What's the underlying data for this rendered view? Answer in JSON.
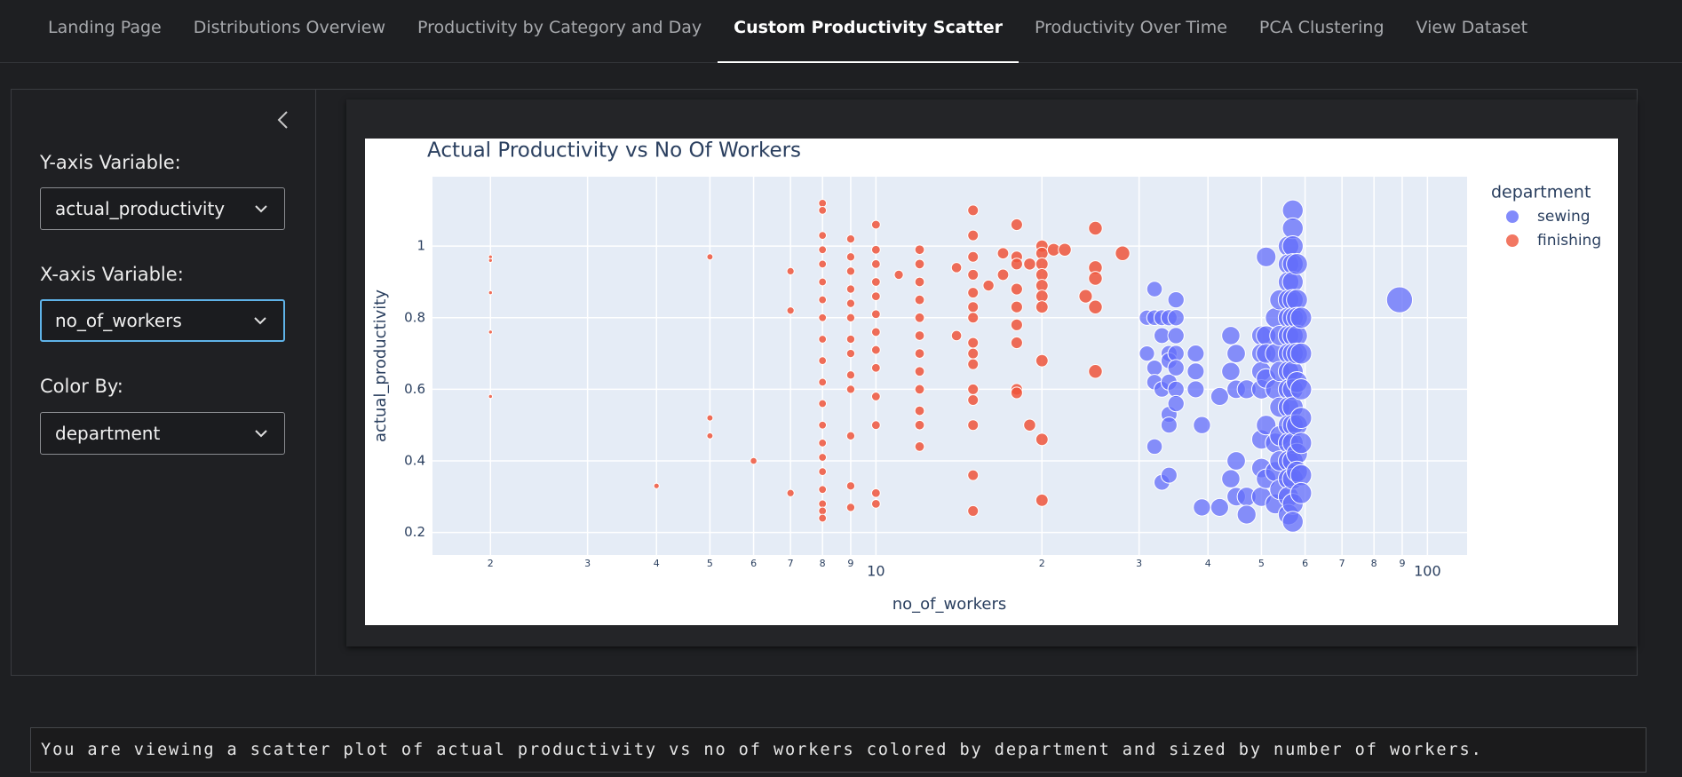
{
  "nav": {
    "tabs": [
      "Landing Page",
      "Distributions Overview",
      "Productivity by Category and Day",
      "Custom Productivity Scatter",
      "Productivity Over Time",
      "PCA Clustering",
      "View Dataset"
    ]
  },
  "sidebar": {
    "y_label": "Y-axis Variable:",
    "y_value": "actual_productivity",
    "x_label": "X-axis Variable:",
    "x_value": "no_of_workers",
    "color_label": "Color By:",
    "color_value": "department"
  },
  "chart_data": {
    "type": "scatter",
    "title": "Actual Productivity vs No Of Workers",
    "x_label": "no_of_workers",
    "y_label": "actual_productivity",
    "legend_title": "department",
    "legend": "right",
    "log_x": true,
    "grid": true,
    "xlim": [
      1.57,
      118
    ],
    "ylim": [
      0.137,
      1.194
    ],
    "xticks": [
      2,
      3,
      4,
      5,
      6,
      7,
      8,
      9,
      10,
      {
        "value": 20,
        "label": "2"
      },
      {
        "value": 30,
        "label": "3"
      },
      {
        "value": 40,
        "label": "4"
      },
      {
        "value": 50,
        "label": "5"
      },
      {
        "value": 60,
        "label": "6"
      },
      {
        "value": 70,
        "label": "7"
      },
      {
        "value": 80,
        "label": "8"
      },
      {
        "value": 90,
        "label": "9"
      },
      100
    ],
    "yticks": [
      0.2,
      0.4,
      0.6,
      0.8,
      1
    ],
    "series": [
      {
        "name": "sewing",
        "color": "#636efa",
        "x": [
          31,
          31,
          32,
          32,
          32,
          32,
          32,
          33,
          33,
          33,
          33,
          34,
          34,
          34,
          34,
          34,
          34,
          34,
          35,
          35,
          35,
          35,
          35,
          35,
          35,
          38,
          38,
          38,
          39,
          39,
          42,
          42,
          44,
          44,
          44,
          45,
          45,
          45,
          45,
          47,
          47,
          47,
          50,
          50,
          50,
          50,
          50,
          50,
          50,
          51,
          51,
          51,
          51,
          51,
          51,
          53,
          53,
          53,
          53,
          53,
          53,
          54,
          54,
          54,
          54,
          54,
          54,
          54,
          56,
          56,
          56,
          56,
          56,
          56,
          56,
          56,
          56,
          56,
          56,
          56,
          56,
          56,
          56,
          56,
          57,
          57,
          57,
          57,
          57,
          57,
          57,
          57,
          57,
          57,
          57,
          57,
          57,
          57,
          57,
          57,
          57,
          57,
          58,
          58,
          58,
          58,
          58,
          58,
          58,
          58,
          58,
          59,
          59,
          59,
          59,
          59,
          59,
          59,
          89
        ],
        "values": [
          0.8,
          0.7,
          0.88,
          0.8,
          0.66,
          0.62,
          0.44,
          0.8,
          0.75,
          0.6,
          0.34,
          0.8,
          0.7,
          0.68,
          0.62,
          0.53,
          0.5,
          0.36,
          0.85,
          0.8,
          0.75,
          0.7,
          0.66,
          0.6,
          0.56,
          0.7,
          0.65,
          0.6,
          0.5,
          0.27,
          0.58,
          0.27,
          0.75,
          0.65,
          0.35,
          0.7,
          0.6,
          0.4,
          0.3,
          0.6,
          0.3,
          0.25,
          0.75,
          0.7,
          0.65,
          0.6,
          0.46,
          0.38,
          0.3,
          0.97,
          0.75,
          0.7,
          0.63,
          0.5,
          0.35,
          0.8,
          0.7,
          0.6,
          0.45,
          0.37,
          0.28,
          0.85,
          0.75,
          0.65,
          0.55,
          0.47,
          0.4,
          0.32,
          1.0,
          0.95,
          0.9,
          0.85,
          0.8,
          0.75,
          0.7,
          0.65,
          0.6,
          0.55,
          0.5,
          0.45,
          0.4,
          0.35,
          0.3,
          0.25,
          1.1,
          1.05,
          1.0,
          0.95,
          0.9,
          0.85,
          0.8,
          0.75,
          0.7,
          0.65,
          0.6,
          0.55,
          0.5,
          0.45,
          0.4,
          0.35,
          0.28,
          0.23,
          0.95,
          0.85,
          0.8,
          0.75,
          0.7,
          0.62,
          0.5,
          0.42,
          0.37,
          0.8,
          0.7,
          0.6,
          0.52,
          0.45,
          0.36,
          0.31,
          0.85
        ]
      },
      {
        "name": "finishing",
        "color": "#ef553b",
        "x": [
          2,
          2,
          2,
          2,
          2,
          4,
          5,
          5,
          5,
          6,
          7,
          7,
          7,
          8,
          8,
          8,
          8,
          8,
          8,
          8,
          8,
          8,
          8,
          8,
          8,
          8,
          8,
          8,
          8,
          8,
          8,
          8,
          8,
          9,
          9,
          9,
          9,
          9,
          9,
          9,
          9,
          9,
          9,
          9,
          9,
          9,
          10,
          10,
          10,
          10,
          10,
          10,
          10,
          10,
          10,
          10,
          10,
          10,
          10,
          11,
          12,
          12,
          12,
          12,
          12,
          12,
          12,
          12,
          12,
          12,
          12,
          12,
          14,
          14,
          15,
          15,
          15,
          15,
          15,
          15,
          15,
          15,
          15,
          15,
          15,
          15,
          15,
          15,
          15,
          16,
          17,
          17,
          18,
          18,
          18,
          18,
          18,
          18,
          18,
          18,
          18,
          19,
          19,
          20,
          20,
          20,
          20,
          20,
          20,
          20,
          20,
          20,
          20,
          21,
          22,
          24,
          25,
          25,
          25,
          25,
          25,
          28
        ],
        "values": [
          0.97,
          0.96,
          0.87,
          0.76,
          0.58,
          0.33,
          0.97,
          0.52,
          0.47,
          0.4,
          0.93,
          0.82,
          0.31,
          1.12,
          1.1,
          1.03,
          0.99,
          0.95,
          0.9,
          0.85,
          0.8,
          0.74,
          0.68,
          0.62,
          0.56,
          0.5,
          0.45,
          0.41,
          0.37,
          0.32,
          0.28,
          0.26,
          0.24,
          1.02,
          0.97,
          0.93,
          0.88,
          0.84,
          0.8,
          0.74,
          0.7,
          0.64,
          0.6,
          0.47,
          0.33,
          0.27,
          1.06,
          0.99,
          0.95,
          0.9,
          0.86,
          0.81,
          0.76,
          0.71,
          0.66,
          0.58,
          0.5,
          0.31,
          0.28,
          0.92,
          0.99,
          0.95,
          0.9,
          0.85,
          0.8,
          0.75,
          0.7,
          0.65,
          0.6,
          0.54,
          0.5,
          0.44,
          0.94,
          0.75,
          1.1,
          1.03,
          0.97,
          0.92,
          0.87,
          0.83,
          0.8,
          0.73,
          0.7,
          0.67,
          0.6,
          0.57,
          0.5,
          0.36,
          0.26,
          0.89,
          0.98,
          0.92,
          1.06,
          0.97,
          0.95,
          0.88,
          0.83,
          0.78,
          0.73,
          0.6,
          0.59,
          0.95,
          0.5,
          1.0,
          0.98,
          0.95,
          0.92,
          0.89,
          0.86,
          0.83,
          0.68,
          0.46,
          0.29,
          0.99,
          0.99,
          0.86,
          1.05,
          0.94,
          0.91,
          0.83,
          0.65,
          0.98
        ]
      }
    ]
  },
  "footer": {
    "text": "You are viewing a scatter plot of actual productivity vs no of workers colored by department and sized by number of workers."
  }
}
